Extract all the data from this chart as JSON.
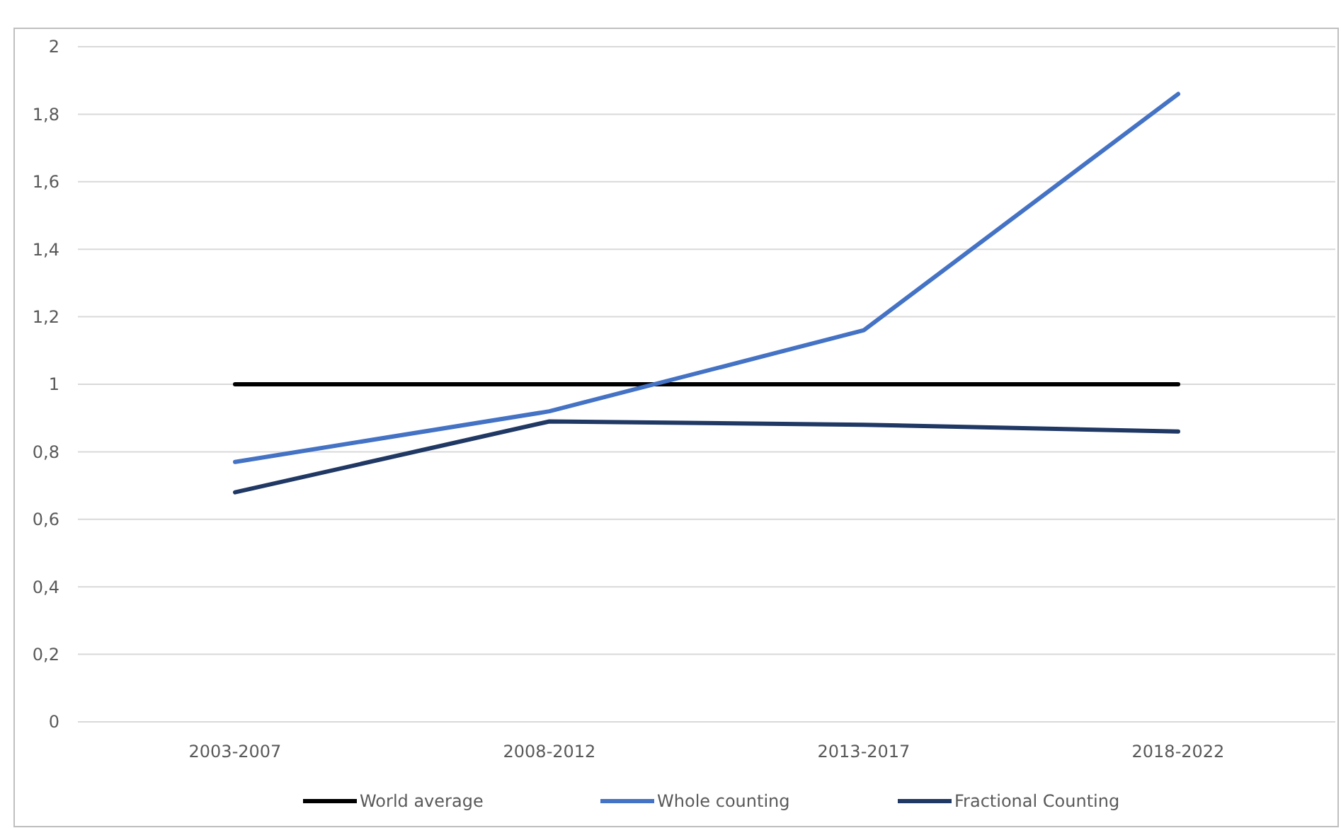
{
  "chart_data": {
    "type": "line",
    "categories": [
      "2003-2007",
      "2008-2012",
      "2013-2017",
      "2018-2022"
    ],
    "series": [
      {
        "name": "World average",
        "color": "#000000",
        "values": [
          1,
          1,
          1,
          1
        ]
      },
      {
        "name": "Whole counting",
        "color": "#4472c4",
        "values": [
          0.77,
          0.92,
          1.16,
          1.86
        ]
      },
      {
        "name": "Fractional Counting",
        "color": "#203864",
        "values": [
          0.68,
          0.89,
          0.88,
          0.86
        ]
      }
    ],
    "ylim": [
      0,
      2
    ],
    "yticks": [
      {
        "value": 0,
        "label": "0"
      },
      {
        "value": 0.2,
        "label": "0,2"
      },
      {
        "value": 0.4,
        "label": "0,4"
      },
      {
        "value": 0.6,
        "label": "0,6"
      },
      {
        "value": 0.8,
        "label": "0,8"
      },
      {
        "value": 1,
        "label": "1"
      },
      {
        "value": 1.2,
        "label": "1,2"
      },
      {
        "value": 1.4,
        "label": "1,4"
      },
      {
        "value": 1.6,
        "label": "1,6"
      },
      {
        "value": 1.8,
        "label": "1,8"
      },
      {
        "value": 2,
        "label": "2"
      }
    ],
    "grid": "y",
    "legend": "bottom",
    "marker": "none",
    "line_style": "solid"
  }
}
